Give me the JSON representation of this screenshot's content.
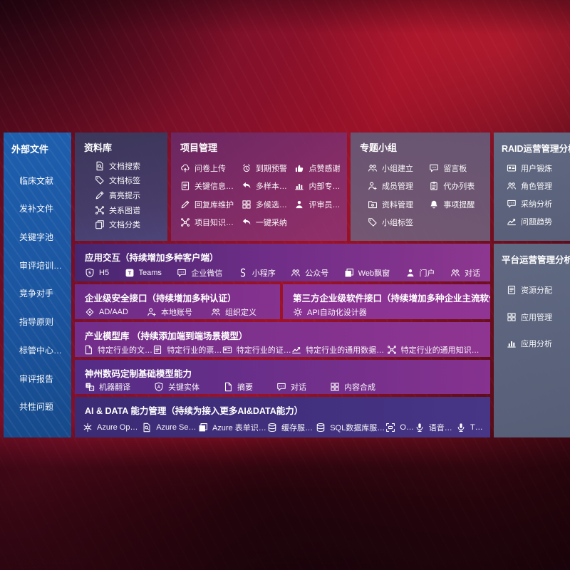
{
  "colors": {
    "background_red": "#9d1228",
    "sidebar_blue": "#1b55a0",
    "panel_slate": "#3c4678",
    "panel_magenta": "#80326f",
    "panel_gray": "#60698a",
    "row_purple_left": "#46276f",
    "row_magenta_right": "#8d3790",
    "row_indigo": "#3b2b74"
  },
  "sidebar": {
    "title": "外部文件",
    "items": [
      {
        "label": "临床文献",
        "name": "sidebar-item-clinical-literature"
      },
      {
        "label": "发补文件",
        "name": "sidebar-item-supplement-files"
      },
      {
        "label": "关键字池",
        "name": "sidebar-item-keyword-pool"
      },
      {
        "label": "审评培训内容",
        "name": "sidebar-item-review-training"
      },
      {
        "label": "竞争对手",
        "name": "sidebar-item-competitors"
      },
      {
        "label": "指导原则",
        "name": "sidebar-item-guidelines"
      },
      {
        "label": "标管中心标准",
        "name": "sidebar-item-standards-center"
      },
      {
        "label": "审评报告",
        "name": "sidebar-item-review-reports"
      },
      {
        "label": "共性问题",
        "name": "sidebar-item-common-issues"
      }
    ]
  },
  "panels": {
    "library": {
      "title": "资料库",
      "items": [
        {
          "label": "文档搜索",
          "icon": "doc-search-icon",
          "glyph": "docsearch"
        },
        {
          "label": "文档标签",
          "icon": "doc-tag-icon",
          "glyph": "tag"
        },
        {
          "label": "高亮提示",
          "icon": "highlight-pen-icon",
          "glyph": "pen"
        },
        {
          "label": "关系图谱",
          "icon": "relation-graph-icon",
          "glyph": "graph"
        },
        {
          "label": "文档分类",
          "icon": "doc-category-icon",
          "glyph": "copy"
        }
      ]
    },
    "project": {
      "title": "项目管理",
      "items": [
        {
          "label": "问卷上传",
          "icon": "cloud-upload-icon",
          "glyph": "cloudup"
        },
        {
          "label": "到期预警",
          "icon": "due-alarm-icon",
          "glyph": "alarm"
        },
        {
          "label": "点赞感谢",
          "icon": "thumbs-up-icon",
          "glyph": "thumb"
        },
        {
          "label": "关键信息提取",
          "icon": "info-extract-icon",
          "glyph": "list"
        },
        {
          "label": "多样本候选",
          "icon": "multi-sample-icon",
          "glyph": "reply"
        },
        {
          "label": "内部专家排名",
          "icon": "expert-ranking-icon",
          "glyph": "chart"
        },
        {
          "label": "回复库维护",
          "icon": "reply-maintain-icon",
          "glyph": "pen"
        },
        {
          "label": "多候选生成",
          "icon": "multi-candidate-icon",
          "glyph": "grid"
        },
        {
          "label": "评审员画像",
          "icon": "reviewer-profile-icon",
          "glyph": "person"
        },
        {
          "label": "项目知识图谱",
          "icon": "project-knowledge-graph-icon",
          "glyph": "graph"
        },
        {
          "label": "一键采纳",
          "icon": "one-click-adopt-icon",
          "glyph": "reply"
        }
      ]
    },
    "group": {
      "title": "专题小组",
      "items": [
        {
          "label": "小组建立",
          "icon": "team-create-icon",
          "glyph": "people"
        },
        {
          "label": "留言板",
          "icon": "message-board-icon",
          "glyph": "chat"
        },
        {
          "label": "成员管理",
          "icon": "member-manage-icon",
          "glyph": "personplus"
        },
        {
          "label": "代办列表",
          "icon": "todo-list-icon",
          "glyph": "clipboard"
        },
        {
          "label": "资料管理",
          "icon": "material-manage-icon",
          "glyph": "folder"
        },
        {
          "label": "事项提醒",
          "icon": "reminder-bell-icon",
          "glyph": "bell"
        },
        {
          "label": "小组标签",
          "icon": "group-tag-icon",
          "glyph": "tag"
        }
      ]
    },
    "raid": {
      "title": "RAID运营管理分析",
      "items": [
        {
          "label": "用户锻炼",
          "icon": "user-card-icon",
          "glyph": "card"
        },
        {
          "label": "角色管理",
          "icon": "role-manage-icon",
          "glyph": "people"
        },
        {
          "label": "采纳分析",
          "icon": "adoption-analysis-icon",
          "glyph": "chat"
        },
        {
          "label": "问题趋势",
          "icon": "issue-trend-icon",
          "glyph": "trend"
        }
      ]
    },
    "platform": {
      "title": "平台运营管理分析",
      "items": [
        {
          "label": "资源分配",
          "icon": "resource-allocation-icon",
          "glyph": "list"
        },
        {
          "label": "应用管理",
          "icon": "app-manage-icon",
          "glyph": "grid"
        },
        {
          "label": "应用分析",
          "icon": "app-analysis-icon",
          "glyph": "chart"
        }
      ]
    },
    "interaction": {
      "title": "应用交互（持续增加多种客户端）",
      "items": [
        {
          "label": "H5",
          "icon": "html5-icon",
          "glyph": "shield5"
        },
        {
          "label": "Teams",
          "icon": "teams-icon",
          "glyph": "teams"
        },
        {
          "label": "企业微信",
          "icon": "wechat-work-icon",
          "glyph": "chat"
        },
        {
          "label": "小程序",
          "icon": "miniprogram-icon",
          "glyph": "mini"
        },
        {
          "label": "公众号",
          "icon": "official-account-icon",
          "glyph": "people"
        },
        {
          "label": "Web飘窗",
          "icon": "web-popup-icon",
          "glyph": "window"
        },
        {
          "label": "门户",
          "icon": "portal-icon",
          "glyph": "person"
        },
        {
          "label": "对话",
          "icon": "dialog-icon",
          "glyph": "people"
        }
      ]
    },
    "security": {
      "title": "企业级安全接口（持续增加多种认证）",
      "items": [
        {
          "label": "AD/AAD",
          "icon": "ad-aad-icon",
          "glyph": "diamond"
        },
        {
          "label": "本地账号",
          "icon": "local-account-icon",
          "glyph": "personplus"
        },
        {
          "label": "组织定义",
          "icon": "org-define-icon",
          "glyph": "people"
        }
      ]
    },
    "thirdparty": {
      "title": "第三方企业级软件接口（持续增加多种企业主流软件接口）",
      "items": [
        {
          "label": "API自动化设计器",
          "icon": "api-designer-icon",
          "glyph": "gear"
        }
      ]
    },
    "models": {
      "title": "产业模型库 （持续添加端到端场景模型）",
      "items": [
        {
          "label": "特定行业的文件识别",
          "icon": "file-recognition-icon",
          "glyph": "doc"
        },
        {
          "label": "特定行业的票据识别",
          "icon": "receipt-recognition-icon",
          "glyph": "list"
        },
        {
          "label": "特定行业的证件识别",
          "icon": "card-recognition-icon",
          "glyph": "card"
        },
        {
          "label": "特定行业的通用数据分析模型",
          "icon": "data-analysis-model-icon",
          "glyph": "trend"
        },
        {
          "label": "特定行业的通用知识图谱模型",
          "icon": "knowledge-graph-model-icon",
          "glyph": "graph"
        }
      ]
    },
    "foundation": {
      "title": "神州数码定制基础模型能力",
      "items": [
        {
          "label": "机器翻译",
          "icon": "translate-icon",
          "glyph": "translate"
        },
        {
          "label": "关键实体",
          "icon": "key-entity-icon",
          "glyph": "shieldA"
        },
        {
          "label": "摘要",
          "icon": "summary-icon",
          "glyph": "doc"
        },
        {
          "label": "对话",
          "icon": "chat-icon",
          "glyph": "chat"
        },
        {
          "label": "内容合成",
          "icon": "content-compose-icon",
          "glyph": "grid"
        }
      ]
    },
    "aidata": {
      "title": "AI & DATA 能力管理（持续为接入更多AI&DATA能力）",
      "items": [
        {
          "label": "Azure Open AI",
          "icon": "azure-openai-icon",
          "glyph": "spark"
        },
        {
          "label": "Azure Search",
          "icon": "azure-search-icon",
          "glyph": "docsearch"
        },
        {
          "label": "Azure 表单识别器",
          "icon": "form-recognizer-icon",
          "glyph": "window"
        },
        {
          "label": "缓存服务器",
          "icon": "cache-server-icon",
          "glyph": "db"
        },
        {
          "label": "SQL数据库服务器",
          "icon": "sql-server-icon",
          "glyph": "db"
        },
        {
          "label": "OCR",
          "icon": "ocr-icon",
          "glyph": "ocr"
        },
        {
          "label": "语音理解",
          "icon": "speech-understanding-icon",
          "glyph": "mic"
        },
        {
          "label": "TTS",
          "icon": "tts-icon",
          "glyph": "mic"
        }
      ]
    }
  }
}
